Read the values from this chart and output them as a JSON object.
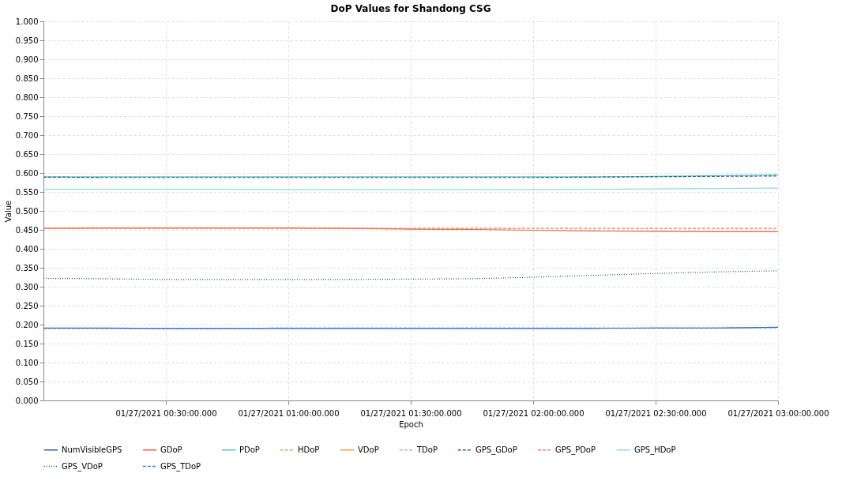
{
  "chart_data": {
    "type": "line",
    "title": "DoP Values for Shandong CSG",
    "xlabel": "Epoch",
    "ylabel": "Value",
    "x": [
      "2021-01-27T00:00",
      "2021-01-27T00:15",
      "2021-01-27T00:30",
      "2021-01-27T00:45",
      "2021-01-27T01:00",
      "2021-01-27T01:15",
      "2021-01-27T01:30",
      "2021-01-27T01:45",
      "2021-01-27T02:00",
      "2021-01-27T02:15",
      "2021-01-27T02:30",
      "2021-01-27T02:45",
      "2021-01-27T03:00"
    ],
    "xlim": [
      "2021-01-27T00:00",
      "2021-01-27T03:00"
    ],
    "xticks": [
      {
        "value": "2021-01-27T00:30",
        "label": "01/27/2021 00:30:00.000"
      },
      {
        "value": "2021-01-27T01:00",
        "label": "01/27/2021 01:00:00.000"
      },
      {
        "value": "2021-01-27T01:30",
        "label": "01/27/2021 01:30:00.000"
      },
      {
        "value": "2021-01-27T02:00",
        "label": "01/27/2021 02:00:00.000"
      },
      {
        "value": "2021-01-27T02:30",
        "label": "01/27/2021 02:30:00.000"
      },
      {
        "value": "2021-01-27T03:00",
        "label": "01/27/2021 03:00:00.000"
      }
    ],
    "ylim": [
      0,
      1
    ],
    "yticks": [
      {
        "value": 0,
        "label": "0.000"
      },
      {
        "value": 0.05,
        "label": "0.050"
      },
      {
        "value": 0.1,
        "label": "0.100"
      },
      {
        "value": 0.15,
        "label": "0.150"
      },
      {
        "value": 0.2,
        "label": "0.200"
      },
      {
        "value": 0.25,
        "label": "0.250"
      },
      {
        "value": 0.3,
        "label": "0.300"
      },
      {
        "value": 0.35,
        "label": "0.350"
      },
      {
        "value": 0.4,
        "label": "0.400"
      },
      {
        "value": 0.45,
        "label": "0.450"
      },
      {
        "value": 0.5,
        "label": "0.500"
      },
      {
        "value": 0.55,
        "label": "0.550"
      },
      {
        "value": 0.6,
        "label": "0.600"
      },
      {
        "value": 0.65,
        "label": "0.650"
      },
      {
        "value": 0.7,
        "label": "0.700"
      },
      {
        "value": 0.75,
        "label": "0.750"
      },
      {
        "value": 0.8,
        "label": "0.800"
      },
      {
        "value": 0.85,
        "label": "0.850"
      },
      {
        "value": 0.9,
        "label": "0.900"
      },
      {
        "value": 0.95,
        "label": "0.950"
      },
      {
        "value": 1,
        "label": "1.000"
      }
    ],
    "grid": true,
    "legend": "bottom",
    "marker": "none",
    "series": [
      {
        "name": "NumVisibleGPS",
        "color": "#2a5caa",
        "line_style": "solid",
        "values": [
          0.191,
          0.191,
          0.19,
          0.19,
          0.19,
          0.19,
          0.19,
          0.19,
          0.19,
          0.19,
          0.191,
          0.191,
          0.193
        ]
      },
      {
        "name": "GDoP",
        "color": "#e8603c",
        "line_style": "solid",
        "values": [
          0.454,
          0.455,
          0.455,
          0.455,
          0.455,
          0.454,
          0.452,
          0.451,
          0.449,
          0.447,
          0.446,
          0.445,
          0.445
        ]
      },
      {
        "name": "PDoP",
        "color": "#5bc0c8",
        "line_style": "solid",
        "values": [
          0.59,
          0.59,
          0.59,
          0.59,
          0.59,
          0.59,
          0.59,
          0.59,
          0.59,
          0.59,
          0.591,
          0.593,
          0.595
        ]
      },
      {
        "name": "HDoP",
        "color": "#8fd14f",
        "line_style": "dashed",
        "values": [
          null,
          null,
          null,
          null,
          null,
          null,
          null,
          null,
          null,
          null,
          null,
          null,
          null
        ]
      },
      {
        "name": "VDoP",
        "color": "#f0a030",
        "line_style": "solid",
        "values": [
          null,
          null,
          null,
          null,
          null,
          null,
          null,
          null,
          null,
          null,
          null,
          null,
          null
        ]
      },
      {
        "name": "TDoP",
        "color": "#b8a8e0",
        "line_style": "dashed",
        "values": [
          null,
          null,
          null,
          null,
          null,
          null,
          null,
          null,
          null,
          null,
          null,
          null,
          null
        ]
      },
      {
        "name": "GPS_GDoP",
        "color": "#1f6f80",
        "line_style": "dashed",
        "values": [
          0.589,
          0.588,
          0.588,
          0.588,
          0.588,
          0.588,
          0.588,
          0.588,
          0.588,
          0.589,
          0.59,
          0.591,
          0.592
        ]
      },
      {
        "name": "GPS_PDoP",
        "color": "#f08060",
        "line_style": "dashed",
        "values": [
          0.454,
          0.454,
          0.454,
          0.454,
          0.454,
          0.454,
          0.454,
          0.454,
          0.454,
          0.454,
          0.454,
          0.454,
          0.454
        ]
      },
      {
        "name": "GPS_HDoP",
        "color": "#8fd8d8",
        "line_style": "solid",
        "values": [
          0.557,
          0.557,
          0.557,
          0.557,
          0.556,
          0.556,
          0.556,
          0.556,
          0.556,
          0.557,
          0.558,
          0.559,
          0.56
        ]
      },
      {
        "name": "GPS_VDoP",
        "color": "#1e5a50",
        "line_style": "dotted",
        "values": [
          0.322,
          0.321,
          0.319,
          0.319,
          0.319,
          0.319,
          0.32,
          0.321,
          0.325,
          0.33,
          0.335,
          0.339,
          0.342
        ]
      },
      {
        "name": "GPS_TDoP",
        "color": "#4a7fd0",
        "line_style": "dashed",
        "values": [
          0.19,
          0.19,
          0.19,
          0.19,
          0.191,
          0.191,
          0.191,
          0.191,
          0.191,
          0.191,
          0.191,
          0.191,
          0.192
        ]
      }
    ]
  }
}
